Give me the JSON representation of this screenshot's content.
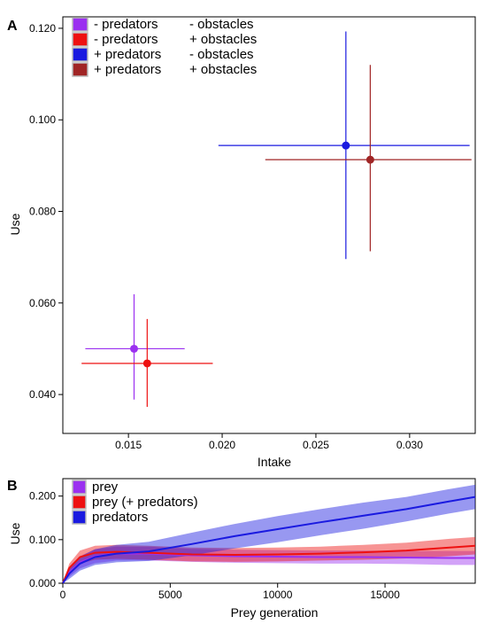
{
  "colors": {
    "purple": "#9b30f0",
    "red": "#ee1111",
    "blue": "#1a1ae0",
    "brown": "#a02525"
  },
  "chart_data": [
    {
      "type": "scatter",
      "panel_label": "A",
      "xlabel": "Intake",
      "ylabel": "Use",
      "xlim": [
        0.0115,
        0.0335
      ],
      "ylim": [
        0.0315,
        0.1225
      ],
      "xticks": [
        "0.015",
        "0.020",
        "0.025",
        "0.030"
      ],
      "xtick_values": [
        0.015,
        0.02,
        0.025,
        0.03
      ],
      "yticks": [
        "0.040",
        "0.060",
        "0.080",
        "0.100",
        "0.120"
      ],
      "ytick_values": [
        0.04,
        0.06,
        0.08,
        0.1,
        0.12
      ],
      "legend_position": "top-left",
      "series": [
        {
          "name_left": "- predators",
          "name_right": "- obstacles",
          "color": "#9b30f0",
          "x": 0.0153,
          "y": 0.05,
          "x_err": [
            0.0127,
            0.018
          ],
          "y_err": [
            0.0389,
            0.0619
          ]
        },
        {
          "name_left": "- predators",
          "name_right": "+ obstacles",
          "color": "#ee1111",
          "x": 0.016,
          "y": 0.0468,
          "x_err": [
            0.0125,
            0.0195
          ],
          "y_err": [
            0.0373,
            0.0565
          ]
        },
        {
          "name_left": "+ predators",
          "name_right": "- obstacles",
          "color": "#1a1ae0",
          "x": 0.0266,
          "y": 0.0944,
          "x_err": [
            0.0198,
            0.0332
          ],
          "y_err": [
            0.0696,
            0.1193
          ]
        },
        {
          "name_left": "+ predators",
          "name_right": "+ obstacles",
          "color": "#a02525",
          "x": 0.0279,
          "y": 0.0913,
          "x_err": [
            0.0223,
            0.0333
          ],
          "y_err": [
            0.0713,
            0.112
          ]
        }
      ]
    },
    {
      "type": "line",
      "panel_label": "B",
      "xlabel": "Prey generation",
      "ylabel": "Use",
      "xlim": [
        0,
        19200
      ],
      "ylim": [
        0,
        0.24
      ],
      "xticks": [
        "0",
        "5000",
        "10000",
        "15000"
      ],
      "xtick_values": [
        0,
        5000,
        10000,
        15000
      ],
      "yticks": [
        "0.000",
        "0.100",
        "0.200"
      ],
      "ytick_values": [
        0,
        0.1,
        0.2
      ],
      "legend_position": "top-left",
      "series": [
        {
          "name": "prey",
          "color": "#9b30f0",
          "x": [
            0,
            300,
            800,
            1500,
            2500,
            4000,
            6000,
            8000,
            10000,
            12000,
            14000,
            16000,
            18000,
            19200
          ],
          "mean": [
            0,
            0.025,
            0.048,
            0.062,
            0.068,
            0.068,
            0.064,
            0.062,
            0.061,
            0.06,
            0.06,
            0.059,
            0.058,
            0.058
          ],
          "band": [
            0,
            0.01,
            0.014,
            0.016,
            0.016,
            0.016,
            0.015,
            0.015,
            0.015,
            0.015,
            0.015,
            0.015,
            0.016,
            0.016
          ]
        },
        {
          "name": "prey (+ predators)",
          "color": "#ee1111",
          "x": [
            0,
            300,
            800,
            1500,
            2500,
            4000,
            6000,
            8000,
            10000,
            12000,
            14000,
            16000,
            18000,
            19200
          ],
          "mean": [
            0,
            0.035,
            0.06,
            0.07,
            0.072,
            0.07,
            0.066,
            0.065,
            0.066,
            0.068,
            0.071,
            0.075,
            0.082,
            0.086
          ],
          "band": [
            0,
            0.01,
            0.015,
            0.016,
            0.016,
            0.016,
            0.016,
            0.016,
            0.016,
            0.016,
            0.017,
            0.018,
            0.02,
            0.02
          ]
        },
        {
          "name": "predators",
          "color": "#1a1ae0",
          "x": [
            0,
            300,
            800,
            1500,
            2500,
            4000,
            6000,
            8000,
            10000,
            12000,
            14000,
            16000,
            18000,
            19200
          ],
          "mean": [
            0,
            0.022,
            0.045,
            0.06,
            0.068,
            0.073,
            0.09,
            0.108,
            0.124,
            0.14,
            0.155,
            0.17,
            0.188,
            0.198
          ],
          "band": [
            0,
            0.012,
            0.016,
            0.018,
            0.02,
            0.022,
            0.026,
            0.028,
            0.03,
            0.03,
            0.03,
            0.028,
            0.028,
            0.028
          ]
        }
      ]
    }
  ]
}
